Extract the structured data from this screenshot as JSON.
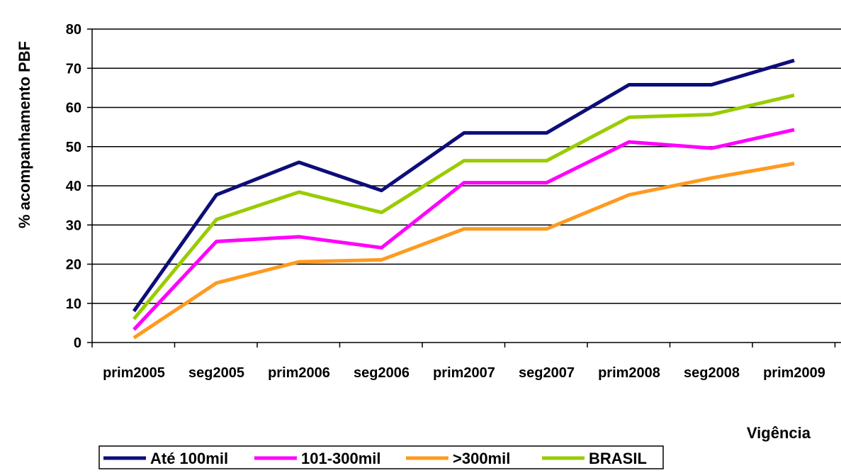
{
  "chart_data": {
    "type": "line",
    "title": "",
    "xlabel": "Vigência",
    "ylabel": "% acompanhamento PBF",
    "ylim": [
      0,
      80
    ],
    "yticks": [
      0,
      10,
      20,
      30,
      40,
      50,
      60,
      70,
      80
    ],
    "grid": "horizontal",
    "legend_position": "bottom-left",
    "categories": [
      "prim2005",
      "seg2005",
      "prim2006",
      "seg2006",
      "prim2007",
      "seg2007",
      "prim2008",
      "seg2008",
      "prim2009"
    ],
    "series": [
      {
        "name": "Até 100mil",
        "color": "#0d0d7a",
        "values": [
          8,
          37.7,
          46,
          38.8,
          53.5,
          53.5,
          65.8,
          65.8,
          72
        ]
      },
      {
        "name": "101-300mil",
        "color": "#ff00ff",
        "values": [
          3.3,
          25.8,
          27,
          24.2,
          40.8,
          40.8,
          51.2,
          49.6,
          54.3
        ]
      },
      {
        "name": ">300mil",
        "color": "#ff9a1f",
        "values": [
          1.2,
          15.2,
          20.6,
          21.1,
          29,
          29,
          37.7,
          42,
          45.7
        ]
      },
      {
        "name": "BRASIL",
        "color": "#99cc00",
        "values": [
          6,
          31.4,
          38.4,
          33.2,
          46.4,
          46.4,
          57.5,
          58.2,
          63.1
        ]
      }
    ]
  }
}
